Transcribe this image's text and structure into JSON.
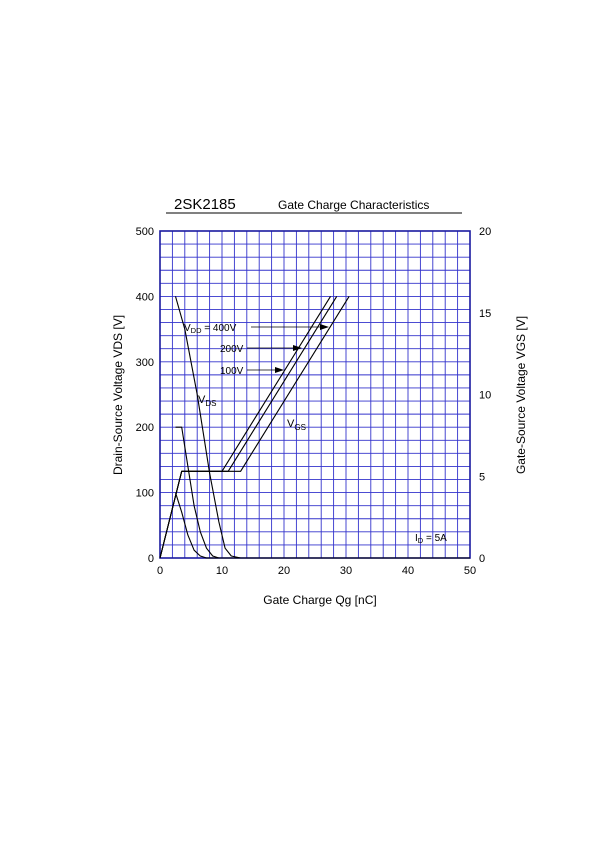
{
  "chart_data": {
    "type": "line",
    "part_number": "2SK2185",
    "title": "Gate Charge Characteristics",
    "xlabel": "Gate Charge  Qg  [nC]",
    "ylabel_left": "Drain-Source Voltage  VDS  [V]",
    "ylabel_right": "Gate-Source Voltage  VGS  [V]",
    "xlim": [
      0,
      50
    ],
    "ylim_left": [
      0,
      500
    ],
    "ylim_right": [
      0,
      20
    ],
    "x_ticks": [
      "0",
      "10",
      "20",
      "30",
      "40",
      "50"
    ],
    "y_left_ticks": [
      "0",
      "100",
      "200",
      "300",
      "400",
      "500"
    ],
    "y_right_ticks": [
      "0",
      "5",
      "10",
      "15",
      "20"
    ],
    "grid": true,
    "grid_color": "#3333cc",
    "line_color": "#000000",
    "series": [
      {
        "name": "VDD = 400V",
        "axis": "left",
        "kind": "VDS",
        "points": [
          [
            2.5,
            400
          ],
          [
            4,
            350
          ],
          [
            6,
            250
          ],
          [
            8,
            130
          ],
          [
            9.5,
            55
          ],
          [
            10.5,
            15
          ],
          [
            11.5,
            3
          ],
          [
            13,
            0
          ],
          [
            50,
            0
          ]
        ]
      },
      {
        "name": "VDD = 200V",
        "axis": "left",
        "kind": "VDS",
        "points": [
          [
            2.5,
            200
          ],
          [
            3.5,
            200
          ],
          [
            4.5,
            140
          ],
          [
            5.5,
            80
          ],
          [
            6.5,
            40
          ],
          [
            7.5,
            15
          ],
          [
            8.5,
            3
          ],
          [
            9.5,
            0
          ],
          [
            50,
            0
          ]
        ]
      },
      {
        "name": "VDD = 100V",
        "axis": "left",
        "kind": "VDS",
        "points": [
          [
            2.5,
            100
          ],
          [
            3.5,
            70
          ],
          [
            4.5,
            35
          ],
          [
            5.5,
            12
          ],
          [
            6.5,
            3
          ],
          [
            7.5,
            0
          ],
          [
            50,
            0
          ]
        ]
      },
      {
        "name": "VDD = 400V",
        "axis": "right",
        "kind": "VGS",
        "points": [
          [
            0,
            0
          ],
          [
            3.5,
            5.3
          ],
          [
            13,
            5.3
          ],
          [
            30.5,
            16
          ]
        ]
      },
      {
        "name": "VDD = 200V",
        "axis": "right",
        "kind": "VGS",
        "points": [
          [
            0,
            0
          ],
          [
            3.5,
            5.3
          ],
          [
            11,
            5.3
          ],
          [
            28.5,
            16
          ]
        ]
      },
      {
        "name": "VDD = 100V",
        "axis": "right",
        "kind": "VGS",
        "points": [
          [
            0,
            0
          ],
          [
            3.5,
            5.3
          ],
          [
            10,
            5.3
          ],
          [
            27.5,
            16
          ]
        ]
      }
    ],
    "annotations": {
      "vdd_prefix": "V",
      "vdd_sub": "DD",
      "vdd_400": " = 400V",
      "vdd_200": "200V",
      "vdd_100": "100V",
      "vds_main": "V",
      "vds_sub": "DS",
      "vgs_main": "V",
      "vgs_sub": "GS",
      "id_main": "I",
      "id_sub": "D",
      "id_value": " = 5A"
    }
  }
}
